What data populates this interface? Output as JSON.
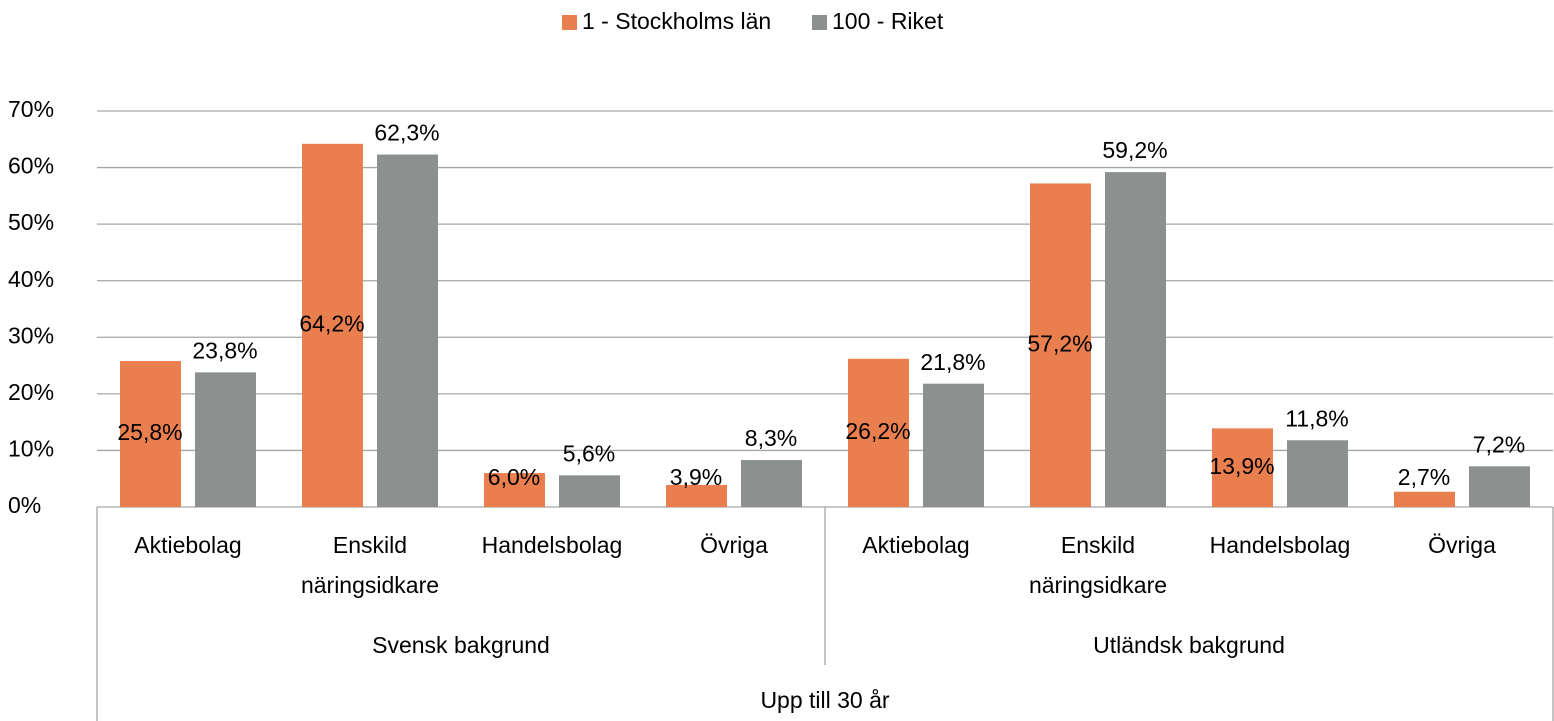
{
  "chart_data": {
    "type": "bar",
    "categories": [
      "Aktiebolag",
      "Enskild näringsidkare",
      "Handelsbolag",
      "Övriga",
      "Aktiebolag",
      "Enskild näringsidkare",
      "Handelsbolag",
      "Övriga"
    ],
    "groups": [
      "Svensk bakgrund",
      "Utländsk bakgrund"
    ],
    "supergroup": "Upp till 30 år",
    "series": [
      {
        "name": "1 - Stockholms län",
        "color": "#e97e4f",
        "values": [
          25.8,
          64.2,
          6.0,
          3.9,
          26.2,
          57.2,
          13.9,
          2.7
        ],
        "value_labels": [
          "25,8%",
          "64,2%",
          "6,0%",
          "3,9%",
          "26,2%",
          "57,2%",
          "13,9%",
          "2,7%"
        ]
      },
      {
        "name": "100 - Riket",
        "color": "#8c918f",
        "values": [
          23.8,
          62.3,
          5.6,
          8.3,
          21.8,
          59.2,
          11.8,
          7.2
        ],
        "value_labels": [
          "23,8%",
          "62,3%",
          "5,6%",
          "8,3%",
          "21,8%",
          "59,2%",
          "11,8%",
          "7,2%"
        ]
      }
    ],
    "ylim": [
      0,
      70
    ],
    "yticks": [
      {
        "value": 0,
        "label": "0%"
      },
      {
        "value": 10,
        "label": "10%"
      },
      {
        "value": 20,
        "label": "20%"
      },
      {
        "value": 30,
        "label": "30%"
      },
      {
        "value": 40,
        "label": "40%"
      },
      {
        "value": 50,
        "label": "50%"
      },
      {
        "value": 60,
        "label": "60%"
      },
      {
        "value": 70,
        "label": "70%"
      }
    ],
    "grid": true,
    "legend": "top"
  }
}
